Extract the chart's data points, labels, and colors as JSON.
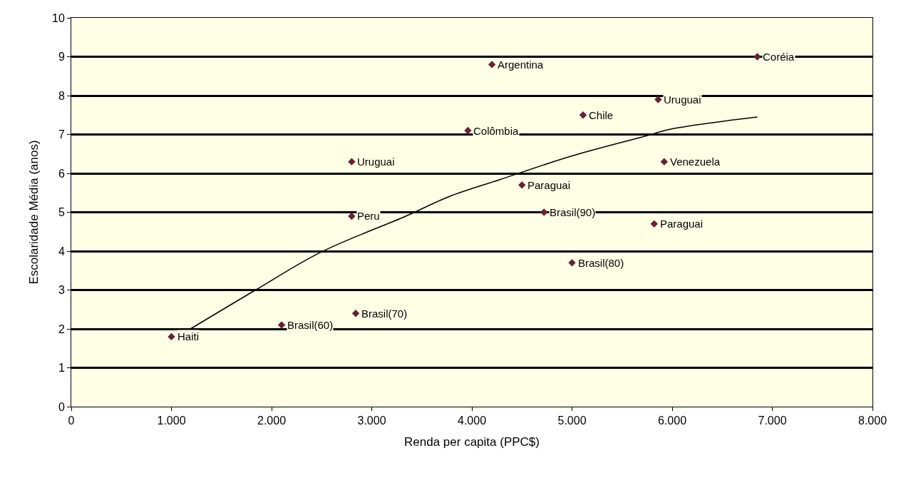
{
  "chart_data": {
    "type": "scatter",
    "xlabel": "Renda per capita (PPC$)",
    "ylabel": "Escolaridade Média (anos)",
    "xlim": [
      0,
      8000
    ],
    "xticks": [
      {
        "value": 0,
        "label": "0"
      },
      {
        "value": 1000,
        "label": "1.000"
      },
      {
        "value": 2000,
        "label": "2.000"
      },
      {
        "value": 3000,
        "label": "3.000"
      },
      {
        "value": 4000,
        "label": "4.000"
      },
      {
        "value": 5000,
        "label": "5.000"
      },
      {
        "value": 6000,
        "label": "6.000"
      },
      {
        "value": 7000,
        "label": "7.000"
      },
      {
        "value": 8000,
        "label": "8.000"
      }
    ],
    "ylim": [
      0,
      10
    ],
    "yticks": [
      0,
      1,
      2,
      3,
      4,
      5,
      6,
      7,
      8,
      9,
      10
    ],
    "grid": "y",
    "series": [
      {
        "color": "#6b1f35",
        "marker": "diamond",
        "x": [
          1000,
          2100,
          2840,
          2800,
          2800,
          3960,
          4200,
          6850,
          5860,
          5110,
          5920,
          4500,
          4720,
          5820,
          5000
        ],
        "values": [
          1.8,
          2.1,
          2.4,
          6.3,
          4.9,
          7.1,
          8.8,
          9.0,
          7.9,
          7.5,
          6.3,
          5.7,
          5.0,
          4.7,
          3.7
        ],
        "value_labels": [
          "Haiti",
          "Brasil(60)",
          "Brasil(70)",
          "Uruguai",
          "Peru",
          "Colômbia",
          "Argentina",
          "Coréia",
          "Uruguai",
          "Chile",
          "Venezuela",
          "Paraguai",
          "Brasil(90)",
          "Paraguai",
          "Brasil(80)"
        ]
      },
      {
        "type": "line",
        "color": "#000000",
        "marker": "none",
        "x": [
          1190,
          1840,
          2490,
          3340,
          3770,
          4280,
          5000,
          5720,
          6010,
          6850
        ],
        "values": [
          2.0,
          3.0,
          3.97,
          4.9,
          5.4,
          5.84,
          6.45,
          6.95,
          7.15,
          7.45
        ]
      }
    ]
  }
}
